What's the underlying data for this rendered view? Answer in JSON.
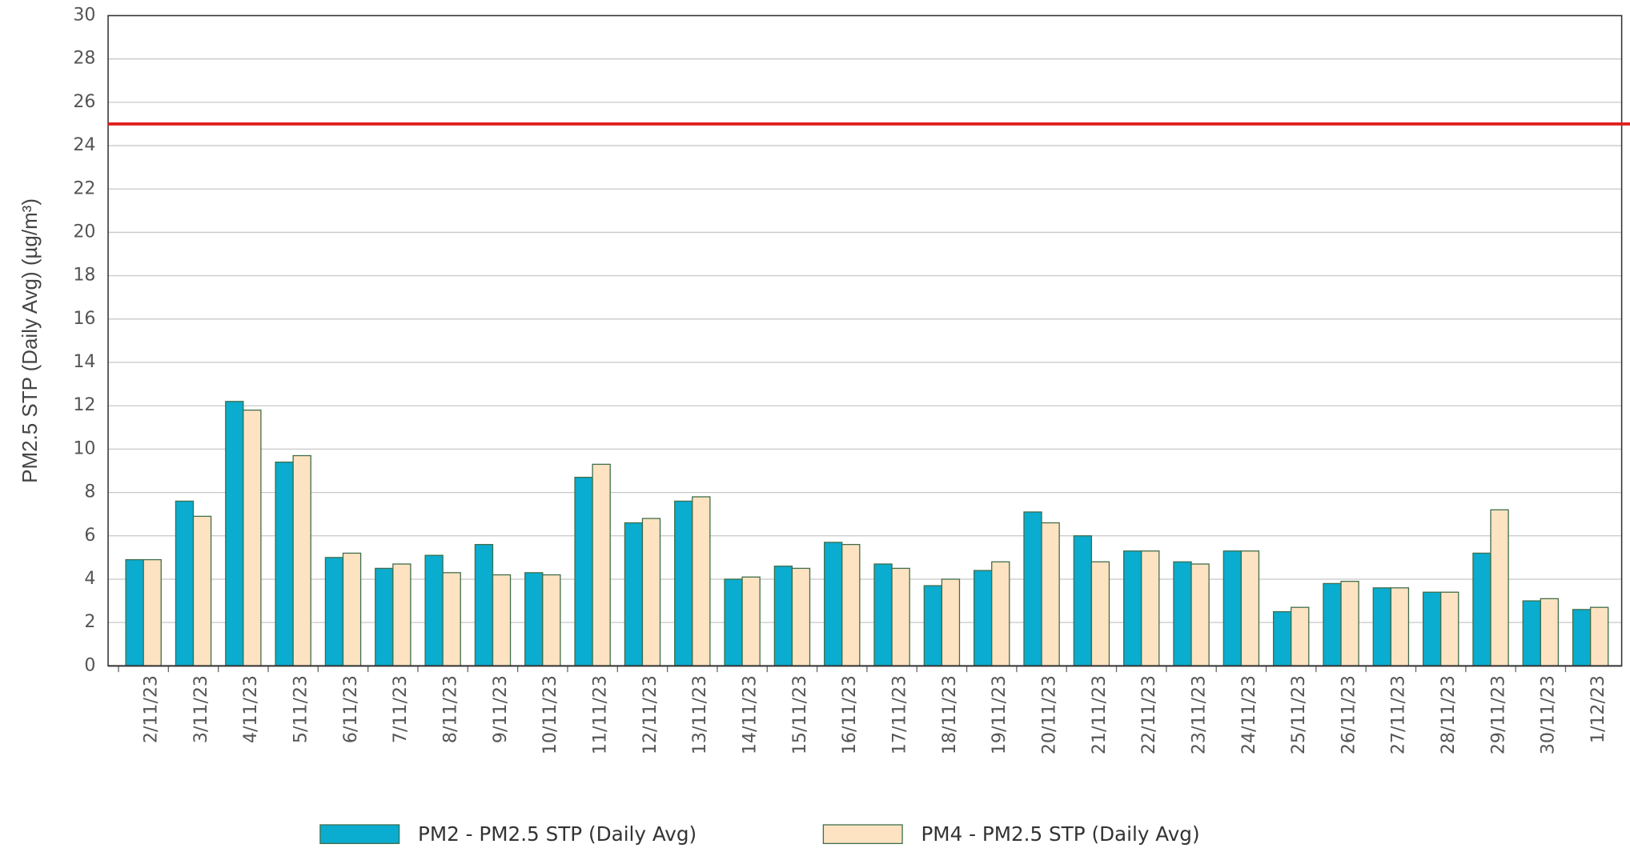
{
  "chart_data": {
    "type": "bar",
    "y_label": "PM2.5 STP (Daily Avg) (µg/m³)",
    "categories": [
      "2/11/23",
      "3/11/23",
      "4/11/23",
      "5/11/23",
      "6/11/23",
      "7/11/23",
      "8/11/23",
      "9/11/23",
      "10/11/23",
      "11/11/23",
      "12/11/23",
      "13/11/23",
      "14/11/23",
      "15/11/23",
      "16/11/23",
      "17/11/23",
      "18/11/23",
      "19/11/23",
      "20/11/23",
      "21/11/23",
      "22/11/23",
      "23/11/23",
      "24/11/23",
      "25/11/23",
      "26/11/23",
      "27/11/23",
      "28/11/23",
      "29/11/23",
      "30/11/23",
      "1/12/23"
    ],
    "series": [
      {
        "name": "PM2 - PM2.5 STP (Daily Avg)",
        "color": "#0aaccf",
        "values": [
          4.9,
          7.6,
          12.2,
          9.4,
          5.0,
          4.5,
          5.1,
          5.6,
          4.3,
          8.7,
          6.6,
          7.6,
          4.0,
          4.6,
          5.7,
          4.7,
          3.7,
          4.4,
          7.1,
          6.0,
          5.3,
          4.8,
          5.3,
          2.5,
          3.8,
          3.6,
          3.4,
          5.2,
          3.0,
          2.6
        ]
      },
      {
        "name": "PM4 - PM2.5 STP (Daily Avg)",
        "color": "#fde3c1",
        "values": [
          4.9,
          6.9,
          11.8,
          9.7,
          5.2,
          4.7,
          4.3,
          4.2,
          4.2,
          9.3,
          6.8,
          7.8,
          4.1,
          4.5,
          5.6,
          4.5,
          4.0,
          4.8,
          6.6,
          4.8,
          5.3,
          4.7,
          5.3,
          2.7,
          3.9,
          3.6,
          3.4,
          7.2,
          3.1,
          2.7
        ]
      }
    ],
    "reference_line": {
      "value": 25,
      "color": "#e0201e"
    },
    "ylim": [
      0,
      30
    ],
    "yticks": [
      0,
      2,
      4,
      6,
      8,
      10,
      12,
      14,
      16,
      18,
      20,
      22,
      24,
      26,
      28,
      30
    ],
    "grid": true,
    "legend": "bottom"
  }
}
